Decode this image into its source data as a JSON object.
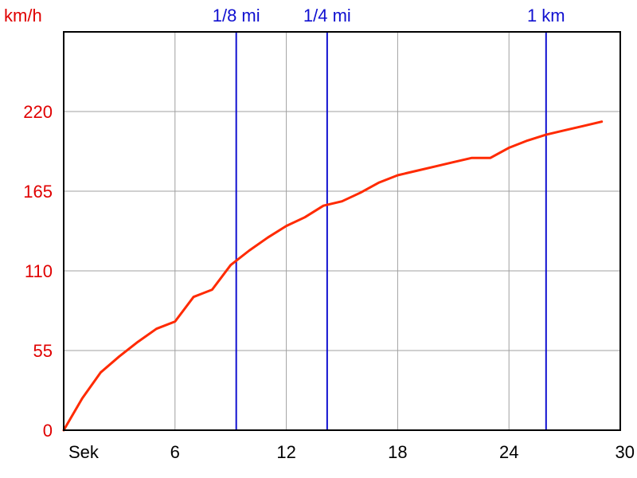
{
  "chart_data": {
    "type": "line",
    "ylabel": "km/h",
    "xlabel": "Sek",
    "xlim": [
      0,
      30
    ],
    "ylim": [
      0,
      275
    ],
    "x_ticks": [
      6,
      12,
      18,
      24,
      30
    ],
    "y_ticks": [
      0,
      55,
      110,
      165,
      220
    ],
    "grid": true,
    "colors": {
      "series": "#ff2a00",
      "markers": "#1010d0",
      "y_ticks": "#e00000",
      "x_ticks": "#000000",
      "grid": "#a0a0a0",
      "frame": "#000000"
    },
    "series": [
      {
        "x": [
          0,
          1,
          2,
          3,
          4,
          5,
          6,
          7,
          8,
          9,
          10,
          11,
          12,
          13,
          14,
          15,
          16,
          17,
          18,
          19,
          20,
          21,
          22,
          23,
          24,
          25,
          26,
          27,
          28,
          29
        ],
        "y": [
          0,
          22,
          40,
          51,
          61,
          70,
          75,
          92,
          97,
          114,
          124,
          133,
          141,
          147,
          155,
          158,
          164,
          171,
          176,
          179,
          182,
          185,
          188,
          188,
          195,
          200,
          204,
          207,
          210,
          213
        ]
      }
    ],
    "markers": [
      {
        "label": "1/8 mi",
        "x": 9.3
      },
      {
        "label": "1/4 mi",
        "x": 14.2
      },
      {
        "label": "1 km",
        "x": 26.0
      }
    ]
  }
}
